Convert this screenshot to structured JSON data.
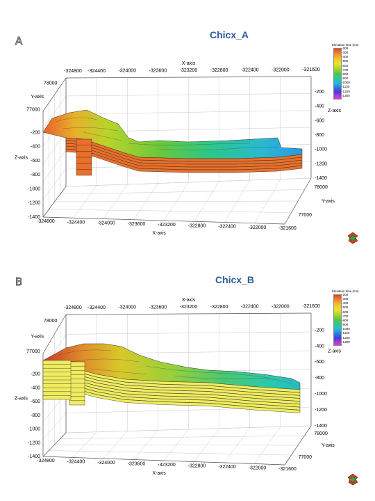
{
  "chart_data": [
    {
      "panel": "A",
      "title": "Chicx_A",
      "type": "3d-surface",
      "x_axis": {
        "label": "X-axis",
        "ticks_top": [
          "-324800",
          "-324400",
          "-324000",
          "-323600",
          "-323200",
          "-322800",
          "-322400",
          "-322000",
          "-321600"
        ],
        "ticks_bottom": [
          "-324800",
          "-324400",
          "-324000",
          "-323600",
          "-323200",
          "-322800",
          "-322400",
          "-322000",
          "-321600"
        ]
      },
      "y_axis": {
        "label": "Y-axis",
        "ticks_left": [
          "78000",
          "77000"
        ],
        "ticks_right": [
          "78000",
          "77000"
        ]
      },
      "z_axis": {
        "label": "Z-axis",
        "ticks_left": [
          "-200",
          "-400",
          "-600",
          "-800",
          "-1000",
          "-1200",
          "-1400"
        ],
        "ticks_right": [
          "-200",
          "-400",
          "-600",
          "-800",
          "-1000",
          "-1200",
          "-1400"
        ]
      },
      "legend": {
        "title": "Elevation time (ms)",
        "labels": [
          "-200",
          "-300",
          "-400",
          "-500",
          "-600",
          "-700",
          "-800",
          "-900",
          "-1000",
          "-1100",
          "-1200",
          "-1300"
        ]
      },
      "colors": {
        "surface_high": "#e8682a",
        "surface_mid": "#b8d42a",
        "surface_low": "#2ab8c8",
        "layers": "#e8702a"
      }
    },
    {
      "panel": "B",
      "title": "Chicx_B",
      "type": "3d-surface",
      "x_axis": {
        "label": "X-axis",
        "ticks_top": [
          "-324800",
          "-324400",
          "-324000",
          "-323600",
          "-323200",
          "-322800",
          "-322400",
          "-322000",
          "-321600"
        ],
        "ticks_bottom": [
          "-324800",
          "-324400",
          "-324000",
          "-323600",
          "-323200",
          "-322800",
          "-322400",
          "-322000",
          "-321600"
        ]
      },
      "y_axis": {
        "label": "Y-axis",
        "ticks_left": [
          "78000",
          "77000"
        ],
        "ticks_right": [
          "78000",
          "77000"
        ]
      },
      "z_axis": {
        "label": "Z-axis",
        "ticks_left": [
          "-200",
          "-400",
          "-600",
          "-800",
          "-1000",
          "-1200",
          "-1400"
        ],
        "ticks_right": [
          "-200",
          "-400",
          "-600",
          "-800",
          "-1000",
          "-1200",
          "-1400"
        ]
      },
      "legend": {
        "title": "Elevation time (ms)",
        "labels": [
          "-200",
          "-300",
          "-400",
          "-500",
          "-600",
          "-700",
          "-800",
          "-900",
          "-1000",
          "-1100",
          "-1200",
          "-1300"
        ]
      },
      "colors": {
        "surface_high": "#d8542a",
        "surface_mid": "#b8d42a",
        "surface_low": "#2ac8b0",
        "layers": "#f0ec60"
      }
    }
  ],
  "panels": {
    "a": {
      "letter": "A"
    },
    "b": {
      "letter": "B"
    }
  },
  "icons": {
    "compass": "compass-icon"
  }
}
